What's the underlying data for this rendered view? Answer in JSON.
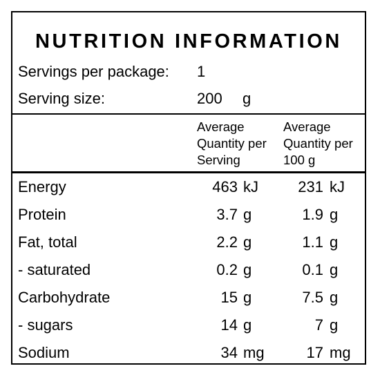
{
  "title": "NUTRITION INFORMATION",
  "servings_per_package": {
    "label": "Servings per package:",
    "value": "1"
  },
  "serving_size": {
    "label": "Serving size:",
    "value": "200",
    "unit": "g"
  },
  "columns": {
    "per_serving": [
      "Average",
      "Quantity per",
      "Serving"
    ],
    "per_100g": [
      "Average",
      "Quantity per",
      "100 g"
    ]
  },
  "rows": [
    {
      "name": "Energy",
      "serving": "463",
      "serving_unit": "kJ",
      "per100": "231",
      "per100_unit": "kJ"
    },
    {
      "name": "Protein",
      "serving": "3.7",
      "serving_unit": "g",
      "per100": "1.9",
      "per100_unit": "g"
    },
    {
      "name": "Fat, total",
      "serving": "2.2",
      "serving_unit": "g",
      "per100": "1.1",
      "per100_unit": "g"
    },
    {
      "name": "- saturated",
      "serving": "0.2",
      "serving_unit": "g",
      "per100": "0.1",
      "per100_unit": "g"
    },
    {
      "name": "Carbohydrate",
      "serving": "15",
      "serving_unit": "g",
      "per100": "7.5",
      "per100_unit": "g"
    },
    {
      "name": "- sugars",
      "serving": "14",
      "serving_unit": "g",
      "per100": "7",
      "per100_unit": "g"
    },
    {
      "name": "Sodium",
      "serving": "34",
      "serving_unit": "mg",
      "per100": "17",
      "per100_unit": "mg"
    }
  ]
}
